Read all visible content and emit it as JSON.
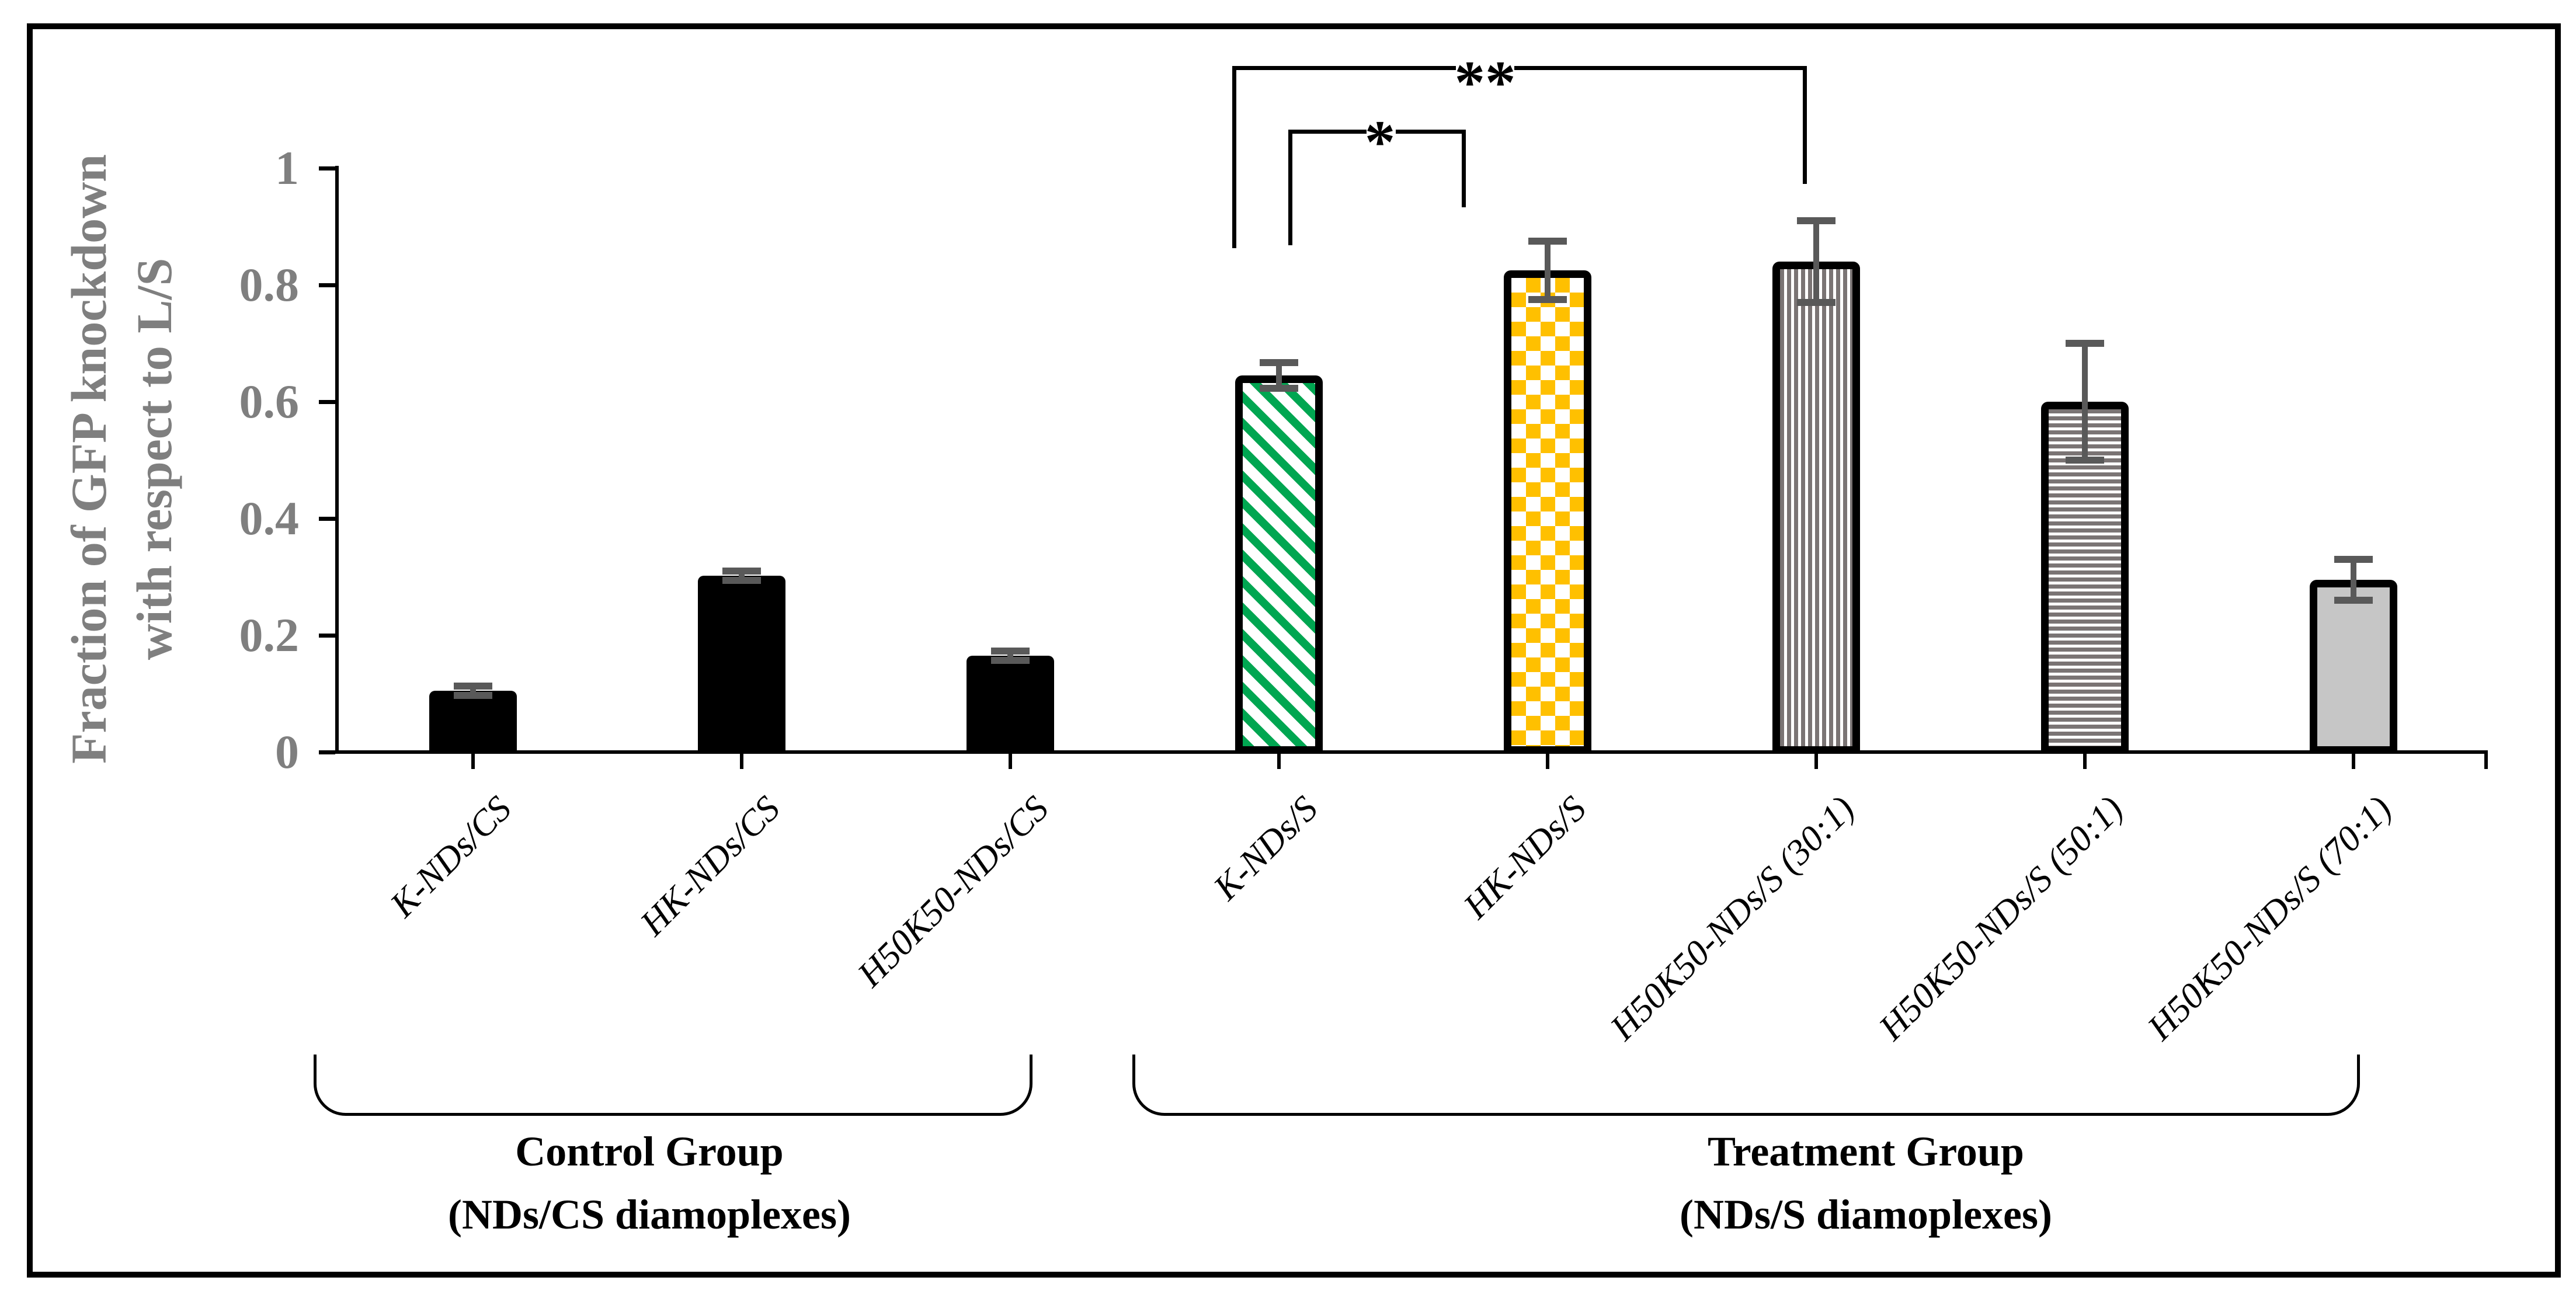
{
  "chart_data": {
    "type": "bar",
    "title": "",
    "ylabel_lines": [
      "Fraction of GFP knockdown",
      "with respect to L/S"
    ],
    "y_axis": {
      "min": 0,
      "max": 1,
      "tick_step": 0.2,
      "tick_labels": [
        "0",
        "0.2",
        "0.4",
        "0.6",
        "0.8",
        "1"
      ],
      "grid": false
    },
    "categories": [
      "K-NDs/CS",
      "HK-NDs/CS",
      "H50K50-NDs/CS",
      "K-NDs/S",
      "HK-NDs/S",
      "H50K50-NDs/S (30:1)",
      "H50K50-NDs/S (50:1)",
      "H50K50-NDs/S (70:1)"
    ],
    "values": [
      0.105,
      0.302,
      0.165,
      0.645,
      0.825,
      0.84,
      0.6,
      0.295
    ],
    "errors": [
      0.008,
      0.008,
      0.008,
      0.022,
      0.05,
      0.07,
      0.1,
      0.035
    ],
    "bar_styles": [
      {
        "fill": "solid",
        "color": "#000000",
        "bordered": false
      },
      {
        "fill": "solid",
        "color": "#000000",
        "bordered": false
      },
      {
        "fill": "solid",
        "color": "#000000",
        "bordered": false
      },
      {
        "fill": "diagonal-stripes",
        "color": "#00A651",
        "background": "#FFFFFF",
        "bordered": true
      },
      {
        "fill": "checkerboard",
        "color": "#FFC000",
        "background": "#FFFFFF",
        "bordered": true
      },
      {
        "fill": "vertical-stripes",
        "color": "#7A7474",
        "background": "#FFFFFF",
        "bordered": true
      },
      {
        "fill": "horizontal-stripes",
        "color": "#7A7474",
        "background": "#FFFFFF",
        "bordered": true
      },
      {
        "fill": "solid",
        "color": "#C6C6C6",
        "bordered": true
      }
    ],
    "error_bar_color": "#595959",
    "axis_color": "#000000",
    "tick_label_color": "#7F7F7F",
    "groups": [
      {
        "label_lines": [
          "Control Group",
          "(NDs/CS diamoplexes)"
        ],
        "span_categories": [
          0,
          2
        ]
      },
      {
        "label_lines": [
          "Treatment Group",
          "(NDs/S diamoplexes)"
        ],
        "span_categories": [
          3,
          7
        ]
      }
    ],
    "significance": [
      {
        "label": "*",
        "between": [
          "K-NDs/S",
          "HK-NDs/S"
        ]
      },
      {
        "label": "**",
        "between": [
          "K-NDs/S",
          "H50K50-NDs/S (30:1)"
        ]
      }
    ]
  }
}
